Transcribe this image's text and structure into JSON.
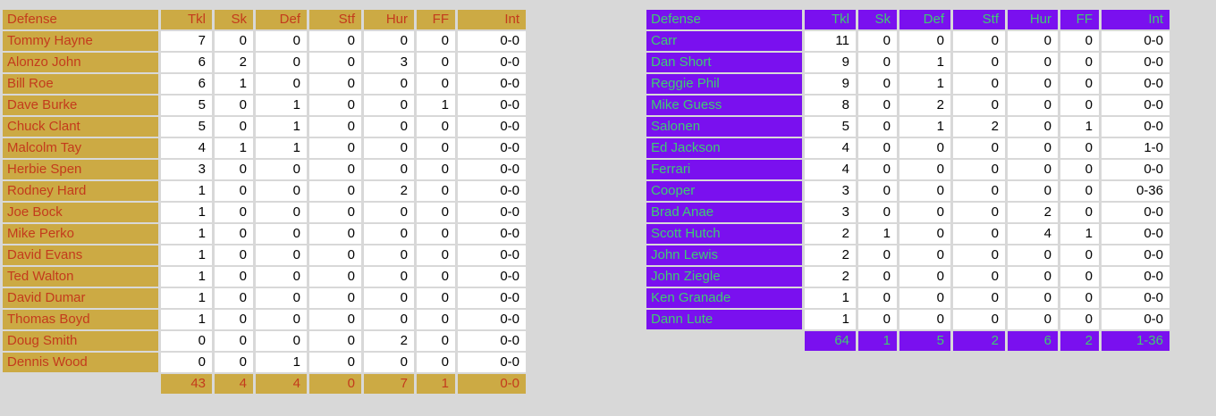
{
  "page": {
    "background": "#d8d8d8"
  },
  "left_table": {
    "theme": {
      "cell_bg": "#ccaa44",
      "text": "#c33b1c"
    },
    "columns": [
      "Defense",
      "Tkl",
      "Sk",
      "Def",
      "Stf",
      "Hur",
      "FF",
      "Int"
    ],
    "rows": [
      {
        "name": "Tommy Hayne",
        "values": [
          "7",
          "0",
          "0",
          "0",
          "0",
          "0",
          "0-0"
        ]
      },
      {
        "name": "Alonzo John",
        "values": [
          "6",
          "2",
          "0",
          "0",
          "3",
          "0",
          "0-0"
        ]
      },
      {
        "name": "Bill Roe",
        "values": [
          "6",
          "1",
          "0",
          "0",
          "0",
          "0",
          "0-0"
        ]
      },
      {
        "name": "Dave Burke",
        "values": [
          "5",
          "0",
          "1",
          "0",
          "0",
          "1",
          "0-0"
        ]
      },
      {
        "name": "Chuck Clant",
        "values": [
          "5",
          "0",
          "1",
          "0",
          "0",
          "0",
          "0-0"
        ]
      },
      {
        "name": "Malcolm Tay",
        "values": [
          "4",
          "1",
          "1",
          "0",
          "0",
          "0",
          "0-0"
        ]
      },
      {
        "name": "Herbie Spen",
        "values": [
          "3",
          "0",
          "0",
          "0",
          "0",
          "0",
          "0-0"
        ]
      },
      {
        "name": "Rodney Hard",
        "values": [
          "1",
          "0",
          "0",
          "0",
          "2",
          "0",
          "0-0"
        ]
      },
      {
        "name": "Joe Bock",
        "values": [
          "1",
          "0",
          "0",
          "0",
          "0",
          "0",
          "0-0"
        ]
      },
      {
        "name": "Mike Perko",
        "values": [
          "1",
          "0",
          "0",
          "0",
          "0",
          "0",
          "0-0"
        ]
      },
      {
        "name": "David Evans",
        "values": [
          "1",
          "0",
          "0",
          "0",
          "0",
          "0",
          "0-0"
        ]
      },
      {
        "name": "Ted Walton",
        "values": [
          "1",
          "0",
          "0",
          "0",
          "0",
          "0",
          "0-0"
        ]
      },
      {
        "name": "David Dumar",
        "values": [
          "1",
          "0",
          "0",
          "0",
          "0",
          "0",
          "0-0"
        ]
      },
      {
        "name": "Thomas Boyd",
        "values": [
          "1",
          "0",
          "0",
          "0",
          "0",
          "0",
          "0-0"
        ]
      },
      {
        "name": "Doug Smith",
        "values": [
          "0",
          "0",
          "0",
          "0",
          "2",
          "0",
          "0-0"
        ]
      },
      {
        "name": "Dennis Wood",
        "values": [
          "0",
          "0",
          "1",
          "0",
          "0",
          "0",
          "0-0"
        ]
      }
    ],
    "totals": [
      "43",
      "4",
      "4",
      "0",
      "7",
      "1",
      "0-0"
    ]
  },
  "right_table": {
    "theme": {
      "cell_bg": "#7a10ef",
      "text": "#3fcb72"
    },
    "columns": [
      "Defense",
      "Tkl",
      "Sk",
      "Def",
      "Stf",
      "Hur",
      "FF",
      "Int"
    ],
    "rows": [
      {
        "name": "Carr",
        "values": [
          "11",
          "0",
          "0",
          "0",
          "0",
          "0",
          "0-0"
        ]
      },
      {
        "name": "Dan Short",
        "values": [
          "9",
          "0",
          "1",
          "0",
          "0",
          "0",
          "0-0"
        ]
      },
      {
        "name": "Reggie Phil",
        "values": [
          "9",
          "0",
          "1",
          "0",
          "0",
          "0",
          "0-0"
        ]
      },
      {
        "name": "Mike Guess",
        "values": [
          "8",
          "0",
          "2",
          "0",
          "0",
          "0",
          "0-0"
        ]
      },
      {
        "name": "Salonen",
        "values": [
          "5",
          "0",
          "1",
          "2",
          "0",
          "1",
          "0-0"
        ]
      },
      {
        "name": "Ed Jackson",
        "values": [
          "4",
          "0",
          "0",
          "0",
          "0",
          "0",
          "1-0"
        ]
      },
      {
        "name": "Ferrari",
        "values": [
          "4",
          "0",
          "0",
          "0",
          "0",
          "0",
          "0-0"
        ]
      },
      {
        "name": "Cooper",
        "values": [
          "3",
          "0",
          "0",
          "0",
          "0",
          "0",
          "0-36"
        ]
      },
      {
        "name": "Brad Anae",
        "values": [
          "3",
          "0",
          "0",
          "0",
          "2",
          "0",
          "0-0"
        ]
      },
      {
        "name": "Scott Hutch",
        "values": [
          "2",
          "1",
          "0",
          "0",
          "4",
          "1",
          "0-0"
        ]
      },
      {
        "name": "John Lewis",
        "values": [
          "2",
          "0",
          "0",
          "0",
          "0",
          "0",
          "0-0"
        ]
      },
      {
        "name": "John Ziegle",
        "values": [
          "2",
          "0",
          "0",
          "0",
          "0",
          "0",
          "0-0"
        ]
      },
      {
        "name": "Ken Granade",
        "values": [
          "1",
          "0",
          "0",
          "0",
          "0",
          "0",
          "0-0"
        ]
      },
      {
        "name": "Dann Lute",
        "values": [
          "1",
          "0",
          "0",
          "0",
          "0",
          "0",
          "0-0"
        ]
      }
    ],
    "totals": [
      "64",
      "1",
      "5",
      "2",
      "6",
      "2",
      "1-36"
    ]
  }
}
